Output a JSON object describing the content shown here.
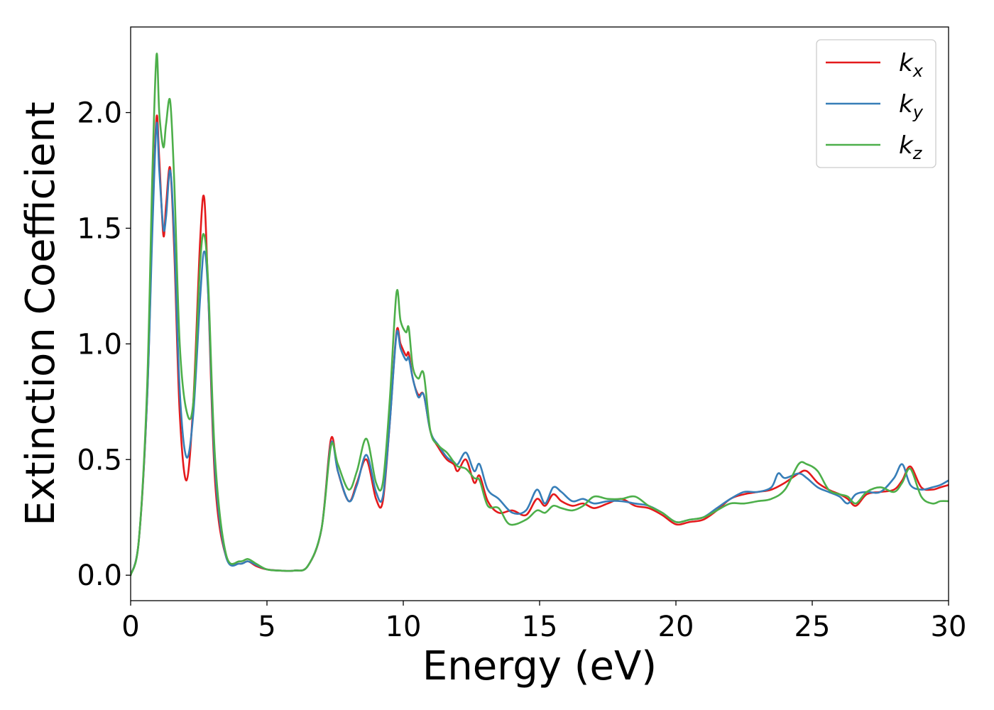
{
  "chart_data": {
    "type": "line",
    "title": "",
    "xlabel": "Energy (eV)",
    "ylabel": "Extinction Coefficient",
    "xlim": [
      0,
      30
    ],
    "ylim": [
      -0.11,
      2.37
    ],
    "xticks": [
      0,
      5,
      10,
      15,
      20,
      25,
      30
    ],
    "xtick_labels": [
      "0",
      "5",
      "10",
      "15",
      "20",
      "25",
      "30"
    ],
    "yticks": [
      0.0,
      0.5,
      1.0,
      1.5,
      2.0
    ],
    "ytick_labels": [
      "0.0",
      "0.5",
      "1.0",
      "1.5",
      "2.0"
    ],
    "grid": false,
    "legend_position": "top-right",
    "series": [
      {
        "name": "k",
        "subscript": "x",
        "color": "#e41a1c",
        "x": [
          0,
          0.3,
          0.6,
          0.8,
          0.95,
          1.05,
          1.2,
          1.3,
          1.45,
          1.6,
          1.8,
          2.05,
          2.3,
          2.55,
          2.7,
          2.85,
          3.1,
          3.5,
          4.0,
          4.3,
          4.6,
          5.0,
          5.5,
          6.0,
          6.5,
          7.0,
          7.35,
          7.6,
          8.0,
          8.3,
          8.65,
          9.0,
          9.25,
          9.5,
          9.75,
          9.9,
          10.1,
          10.2,
          10.35,
          10.55,
          10.75,
          11.0,
          11.3,
          11.6,
          11.85,
          12.0,
          12.3,
          12.6,
          12.8,
          13.1,
          13.5,
          14.0,
          14.5,
          14.9,
          15.2,
          15.5,
          15.8,
          16.2,
          16.6,
          17.0,
          17.5,
          18.0,
          18.5,
          19.0,
          19.5,
          20.0,
          20.5,
          21.0,
          21.5,
          22.0,
          22.5,
          23.0,
          23.5,
          24.0,
          24.5,
          24.8,
          25.2,
          25.6,
          26.0,
          26.3,
          26.6,
          27.0,
          27.5,
          28.0,
          28.3,
          28.6,
          29.0,
          29.4,
          29.7,
          30.0
        ],
        "y": [
          0.0,
          0.15,
          0.75,
          1.55,
          1.98,
          1.8,
          1.47,
          1.6,
          1.76,
          1.4,
          0.7,
          0.41,
          0.75,
          1.45,
          1.63,
          1.2,
          0.4,
          0.08,
          0.05,
          0.06,
          0.04,
          0.025,
          0.02,
          0.02,
          0.04,
          0.2,
          0.59,
          0.45,
          0.32,
          0.4,
          0.5,
          0.33,
          0.32,
          0.65,
          1.05,
          1.0,
          0.95,
          0.96,
          0.85,
          0.78,
          0.78,
          0.62,
          0.55,
          0.5,
          0.48,
          0.45,
          0.5,
          0.4,
          0.43,
          0.32,
          0.27,
          0.28,
          0.26,
          0.33,
          0.3,
          0.35,
          0.32,
          0.3,
          0.31,
          0.29,
          0.31,
          0.33,
          0.3,
          0.29,
          0.26,
          0.22,
          0.23,
          0.24,
          0.28,
          0.33,
          0.35,
          0.36,
          0.37,
          0.4,
          0.44,
          0.45,
          0.4,
          0.37,
          0.35,
          0.33,
          0.3,
          0.35,
          0.36,
          0.37,
          0.41,
          0.47,
          0.38,
          0.37,
          0.38,
          0.39
        ]
      },
      {
        "name": "k",
        "subscript": "y",
        "color": "#377eb8",
        "x": [
          0,
          0.3,
          0.6,
          0.8,
          0.95,
          1.05,
          1.2,
          1.3,
          1.45,
          1.6,
          1.8,
          2.05,
          2.3,
          2.55,
          2.7,
          2.85,
          3.1,
          3.5,
          4.0,
          4.3,
          4.6,
          5.0,
          5.5,
          6.0,
          6.5,
          7.0,
          7.35,
          7.6,
          8.0,
          8.3,
          8.65,
          9.0,
          9.25,
          9.5,
          9.75,
          9.9,
          10.1,
          10.2,
          10.35,
          10.55,
          10.75,
          11.0,
          11.3,
          11.6,
          11.85,
          12.0,
          12.3,
          12.6,
          12.8,
          13.1,
          13.5,
          14.0,
          14.5,
          14.9,
          15.2,
          15.5,
          15.8,
          16.2,
          16.6,
          17.0,
          17.5,
          18.0,
          18.5,
          19.0,
          19.5,
          20.0,
          20.5,
          21.0,
          21.5,
          22.0,
          22.5,
          23.0,
          23.5,
          23.75,
          24.0,
          24.5,
          24.8,
          25.2,
          25.6,
          26.0,
          26.3,
          26.6,
          27.0,
          27.5,
          28.0,
          28.3,
          28.6,
          29.0,
          29.4,
          29.7,
          30.0
        ],
        "y": [
          0.0,
          0.15,
          0.75,
          1.5,
          1.95,
          1.75,
          1.5,
          1.55,
          1.75,
          1.45,
          0.8,
          0.51,
          0.7,
          1.2,
          1.4,
          1.2,
          0.45,
          0.08,
          0.05,
          0.06,
          0.045,
          0.025,
          0.02,
          0.02,
          0.04,
          0.2,
          0.57,
          0.45,
          0.32,
          0.39,
          0.52,
          0.36,
          0.34,
          0.65,
          1.04,
          0.98,
          0.93,
          0.94,
          0.85,
          0.77,
          0.78,
          0.62,
          0.56,
          0.51,
          0.49,
          0.48,
          0.53,
          0.45,
          0.48,
          0.37,
          0.33,
          0.27,
          0.28,
          0.37,
          0.31,
          0.38,
          0.36,
          0.32,
          0.33,
          0.31,
          0.32,
          0.32,
          0.31,
          0.3,
          0.27,
          0.23,
          0.24,
          0.25,
          0.29,
          0.33,
          0.36,
          0.36,
          0.38,
          0.44,
          0.42,
          0.44,
          0.42,
          0.38,
          0.36,
          0.34,
          0.31,
          0.35,
          0.36,
          0.36,
          0.42,
          0.48,
          0.39,
          0.37,
          0.38,
          0.39,
          0.41
        ]
      },
      {
        "name": "k",
        "subscript": "z",
        "color": "#4daf4a",
        "x": [
          0,
          0.3,
          0.6,
          0.8,
          0.95,
          1.05,
          1.2,
          1.3,
          1.45,
          1.6,
          1.8,
          2.05,
          2.3,
          2.55,
          2.7,
          2.85,
          3.1,
          3.5,
          4.0,
          4.3,
          4.6,
          5.0,
          5.5,
          6.0,
          6.5,
          7.0,
          7.35,
          7.6,
          8.0,
          8.3,
          8.65,
          9.0,
          9.25,
          9.5,
          9.75,
          9.9,
          10.1,
          10.2,
          10.35,
          10.55,
          10.75,
          11.0,
          11.3,
          11.6,
          11.85,
          12.0,
          12.3,
          12.6,
          12.8,
          13.1,
          13.5,
          13.9,
          14.5,
          14.9,
          15.2,
          15.5,
          15.8,
          16.2,
          16.6,
          17.0,
          17.5,
          18.0,
          18.5,
          19.0,
          19.5,
          20.0,
          20.5,
          21.0,
          21.5,
          22.0,
          22.5,
          23.0,
          23.5,
          24.0,
          24.5,
          24.8,
          25.2,
          25.6,
          26.0,
          26.3,
          26.6,
          27.0,
          27.5,
          28.0,
          28.3,
          28.6,
          29.0,
          29.4,
          29.7,
          30.0
        ],
        "y": [
          0.0,
          0.15,
          0.8,
          1.75,
          2.25,
          2.0,
          1.85,
          1.95,
          2.05,
          1.7,
          1.0,
          0.71,
          0.75,
          1.35,
          1.47,
          1.25,
          0.5,
          0.09,
          0.06,
          0.07,
          0.05,
          0.025,
          0.02,
          0.02,
          0.04,
          0.2,
          0.56,
          0.48,
          0.37,
          0.45,
          0.59,
          0.4,
          0.4,
          0.75,
          1.22,
          1.1,
          1.05,
          1.07,
          0.9,
          0.85,
          0.87,
          0.62,
          0.56,
          0.53,
          0.49,
          0.47,
          0.46,
          0.42,
          0.41,
          0.3,
          0.29,
          0.22,
          0.24,
          0.28,
          0.27,
          0.3,
          0.29,
          0.28,
          0.3,
          0.34,
          0.33,
          0.33,
          0.34,
          0.3,
          0.27,
          0.23,
          0.24,
          0.25,
          0.28,
          0.31,
          0.31,
          0.32,
          0.33,
          0.37,
          0.48,
          0.48,
          0.45,
          0.37,
          0.35,
          0.34,
          0.31,
          0.36,
          0.38,
          0.36,
          0.4,
          0.46,
          0.34,
          0.31,
          0.32,
          0.32
        ]
      }
    ]
  }
}
